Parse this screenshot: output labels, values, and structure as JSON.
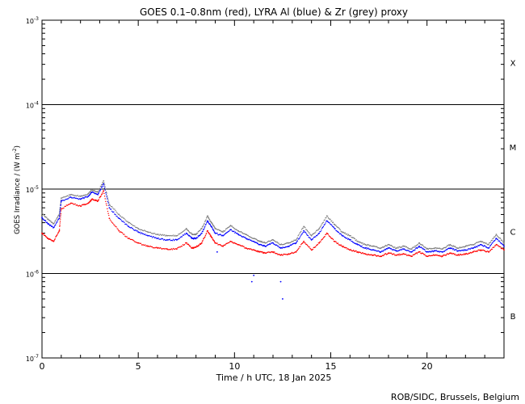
{
  "chart_data": {
    "type": "scatter",
    "title": "GOES 0.1–0.8nm (red), LYRA Al (blue) & Zr (grey) proxy",
    "xlabel": "Time / h UTC, 18 Jan 2025",
    "ylabel_main": "GOES Irradiance / (W m",
    "ylabel_sup": "-2",
    "ylabel_close": ")",
    "xlim": [
      0,
      24
    ],
    "ylim": [
      1e-07,
      0.001
    ],
    "yscale": "log",
    "x_ticks": [
      0,
      5,
      10,
      15,
      20
    ],
    "x_tick_labels": [
      "0",
      "5",
      "10",
      "15",
      "20"
    ],
    "y_ticks": [
      {
        "value": 1e-07,
        "base": "10",
        "exp": "-7"
      },
      {
        "value": 1e-06,
        "base": "10",
        "exp": "-6"
      },
      {
        "value": 1e-05,
        "base": "10",
        "exp": "-5"
      },
      {
        "value": 0.0001,
        "base": "10",
        "exp": "-4"
      },
      {
        "value": 0.001,
        "base": "10",
        "exp": "-3"
      }
    ],
    "flare_class_lines": [
      1e-06,
      1e-05,
      0.0001
    ],
    "flare_classes": [
      {
        "label": "X",
        "value": 0.000316
      },
      {
        "label": "M",
        "value": 3.16e-05
      },
      {
        "label": "C",
        "value": 3.16e-06
      },
      {
        "label": "B",
        "value": 3.16e-07
      }
    ],
    "series": [
      {
        "color": "#ff0000",
        "x": [
          0.0,
          0.3,
          0.6,
          0.9,
          1.0,
          1.5,
          2.0,
          2.4,
          2.6,
          2.9,
          3.2,
          3.5,
          4.0,
          4.5,
          5.0,
          5.5,
          6.0,
          6.5,
          7.0,
          7.5,
          7.8,
          8.0,
          8.3,
          8.6,
          8.8,
          9.0,
          9.4,
          9.8,
          10.2,
          10.6,
          11.0,
          11.3,
          11.6,
          12.0,
          12.4,
          12.8,
          13.2,
          13.6,
          14.0,
          14.4,
          14.8,
          15.2,
          15.6,
          16.0,
          16.4,
          16.8,
          17.2,
          17.6,
          18.0,
          18.4,
          18.8,
          19.2,
          19.6,
          20.0,
          20.4,
          20.8,
          21.2,
          21.6,
          22.0,
          22.4,
          22.8,
          23.2,
          23.6,
          24.0
        ],
        "y": [
          3e-06,
          2.6e-06,
          2.4e-06,
          3.2e-06,
          5.8e-06,
          6.8e-06,
          6.3e-06,
          6.8e-06,
          7.6e-06,
          7.2e-06,
          9.5e-06,
          4.5e-06,
          3.2e-06,
          2.6e-06,
          2.3e-06,
          2.1e-06,
          2e-06,
          1.95e-06,
          1.95e-06,
          2.3e-06,
          2e-06,
          2.05e-06,
          2.3e-06,
          3.2e-06,
          2.7e-06,
          2.3e-06,
          2.1e-06,
          2.4e-06,
          2.2e-06,
          2e-06,
          1.9e-06,
          1.8e-06,
          1.75e-06,
          1.8e-06,
          1.65e-06,
          1.7e-06,
          1.8e-06,
          2.4e-06,
          1.9e-06,
          2.3e-06,
          3e-06,
          2.4e-06,
          2.1e-06,
          1.9e-06,
          1.8e-06,
          1.7e-06,
          1.65e-06,
          1.6e-06,
          1.75e-06,
          1.65e-06,
          1.7e-06,
          1.6e-06,
          1.8e-06,
          1.6e-06,
          1.65e-06,
          1.6e-06,
          1.75e-06,
          1.65e-06,
          1.7e-06,
          1.8e-06,
          1.9e-06,
          1.8e-06,
          2.2e-06,
          1.9e-06
        ]
      },
      {
        "color": "#0000ff",
        "x": [
          0.0,
          0.3,
          0.6,
          0.9,
          1.0,
          1.5,
          2.0,
          2.4,
          2.6,
          2.9,
          3.2,
          3.5,
          4.0,
          4.5,
          5.0,
          5.5,
          6.0,
          6.5,
          7.0,
          7.5,
          7.8,
          8.0,
          8.3,
          8.6,
          8.8,
          9.0,
          9.4,
          9.8,
          10.2,
          10.6,
          11.0,
          11.3,
          11.6,
          12.0,
          12.4,
          12.8,
          13.2,
          13.6,
          14.0,
          14.4,
          14.8,
          15.2,
          15.6,
          16.0,
          16.4,
          16.8,
          17.2,
          17.6,
          18.0,
          18.4,
          18.8,
          19.2,
          19.6,
          20.0,
          20.4,
          20.8,
          21.2,
          21.6,
          22.0,
          22.4,
          22.8,
          23.2,
          23.6,
          24.0
        ],
        "y": [
          4.6e-06,
          3.9e-06,
          3.5e-06,
          4.5e-06,
          7.2e-06,
          8e-06,
          7.6e-06,
          8.2e-06,
          9.2e-06,
          8.6e-06,
          1.15e-05,
          6e-06,
          4.5e-06,
          3.6e-06,
          3.1e-06,
          2.8e-06,
          2.6e-06,
          2.5e-06,
          2.5e-06,
          3e-06,
          2.6e-06,
          2.6e-06,
          3e-06,
          4.2e-06,
          3.6e-06,
          3e-06,
          2.8e-06,
          3.3e-06,
          2.9e-06,
          2.6e-06,
          2.4e-06,
          2.2e-06,
          2.1e-06,
          2.3e-06,
          2e-06,
          2.1e-06,
          2.3e-06,
          3.2e-06,
          2.5e-06,
          3e-06,
          4.2e-06,
          3.4e-06,
          2.8e-06,
          2.5e-06,
          2.2e-06,
          2e-06,
          1.9e-06,
          1.8e-06,
          2e-06,
          1.85e-06,
          1.95e-06,
          1.8e-06,
          2.1e-06,
          1.8e-06,
          1.85e-06,
          1.8e-06,
          2e-06,
          1.85e-06,
          1.9e-06,
          2e-06,
          2.2e-06,
          2e-06,
          2.6e-06,
          2.1e-06
        ]
      },
      {
        "color": "#808080",
        "x": [
          0.0,
          0.3,
          0.6,
          0.9,
          1.0,
          1.5,
          2.0,
          2.4,
          2.6,
          2.9,
          3.2,
          3.5,
          4.0,
          4.5,
          5.0,
          5.5,
          6.0,
          6.5,
          7.0,
          7.5,
          7.8,
          8.0,
          8.3,
          8.6,
          8.8,
          9.0,
          9.4,
          9.8,
          10.2,
          10.6,
          11.0,
          11.3,
          11.6,
          12.0,
          12.4,
          12.8,
          13.2,
          13.6,
          14.0,
          14.4,
          14.8,
          15.2,
          15.6,
          16.0,
          16.4,
          16.8,
          17.2,
          17.6,
          18.0,
          18.4,
          18.8,
          19.2,
          19.6,
          20.0,
          20.4,
          20.8,
          21.2,
          21.6,
          22.0,
          22.4,
          22.8,
          23.2,
          23.6,
          24.0
        ],
        "y": [
          5.2e-06,
          4.4e-06,
          3.9e-06,
          5e-06,
          7.8e-06,
          8.6e-06,
          8.2e-06,
          8.8e-06,
          9.8e-06,
          9.2e-06,
          1.25e-05,
          6.6e-06,
          5e-06,
          4e-06,
          3.4e-06,
          3.1e-06,
          2.9e-06,
          2.8e-06,
          2.8e-06,
          3.4e-06,
          2.9e-06,
          2.9e-06,
          3.4e-06,
          4.8e-06,
          4e-06,
          3.4e-06,
          3.1e-06,
          3.7e-06,
          3.2e-06,
          2.9e-06,
          2.6e-06,
          2.4e-06,
          2.3e-06,
          2.5e-06,
          2.2e-06,
          2.3e-06,
          2.5e-06,
          3.6e-06,
          2.8e-06,
          3.4e-06,
          4.8e-06,
          3.8e-06,
          3.1e-06,
          2.8e-06,
          2.4e-06,
          2.2e-06,
          2.1e-06,
          2e-06,
          2.2e-06,
          2e-06,
          2.1e-06,
          1.95e-06,
          2.3e-06,
          1.95e-06,
          2e-06,
          1.95e-06,
          2.2e-06,
          2e-06,
          2.1e-06,
          2.2e-06,
          2.4e-06,
          2.2e-06,
          2.9e-06,
          2.3e-06
        ]
      }
    ],
    "outliers": [
      {
        "color": "#0000ff",
        "x": [
          10.9,
          11.0,
          12.4,
          12.5,
          9.1
        ],
        "y": [
          8e-07,
          9.5e-07,
          8e-07,
          5e-07,
          1.8e-06
        ]
      }
    ]
  },
  "credit": "ROB/SIDC, Brussels, Belgium"
}
